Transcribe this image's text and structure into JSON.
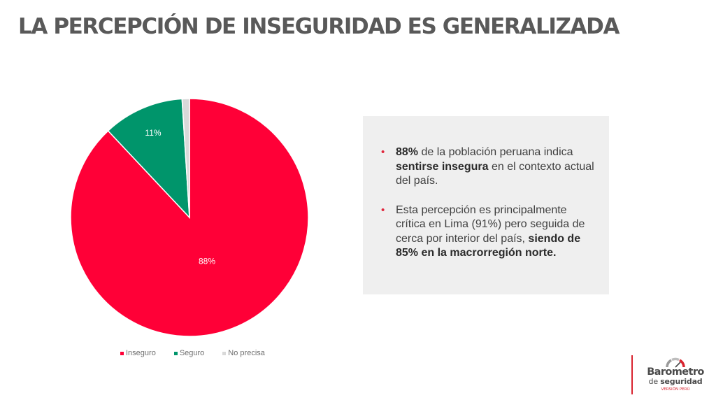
{
  "title": "LA PERCEPCIÓN DE INSEGURIDAD ES GENERALIZADA",
  "chart_data": {
    "type": "pie",
    "categories": [
      "Inseguro",
      "Seguro",
      "No precisa"
    ],
    "values": [
      88,
      11,
      1
    ],
    "colors": [
      "#ff0037",
      "#00956b",
      "#d9d9d9"
    ],
    "data_labels": [
      "88%",
      "11%",
      ""
    ],
    "legend": {
      "position": "bottom",
      "items": [
        {
          "label": "Inseguro",
          "color": "#ff0037"
        },
        {
          "label": "Seguro",
          "color": "#00956b"
        },
        {
          "label": "No precisa",
          "color": "#d9d9d9"
        }
      ]
    }
  },
  "textbox": {
    "bullet1": {
      "strong_lead": "88%",
      "text_a": " de la población peruana indica ",
      "strong_mid": "sentirse insegura",
      "text_b": " en el contexto actual del país."
    },
    "bullet2": {
      "text_a": "Esta percepción es principalmente crítica en Lima (91%) pero seguida de cerca por interior del país, ",
      "strong_end": "siendo de 85% en la macrorregión norte."
    }
  },
  "logo": {
    "line1": "Barometro",
    "line2_prefix": "de ",
    "line2_strong": "seguridad",
    "line3": "VERSIÓN PERÚ"
  }
}
